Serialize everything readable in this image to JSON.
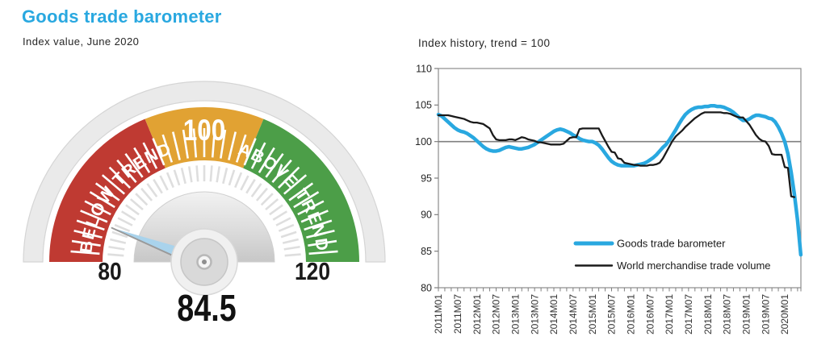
{
  "left_panel": {
    "title": "Goods trade barometer",
    "subtitle": "Index value, June 2020",
    "title_color": "#29a8e0",
    "gauge": {
      "min": 80,
      "max": 120,
      "value": 84.5,
      "value_label": "84.5",
      "min_label": "80",
      "max_label": "120",
      "center_label": "100",
      "segments": [
        {
          "name": "below-trend",
          "label": "BELOW TREND",
          "from": 80,
          "to": 95,
          "color": "#bf3a32"
        },
        {
          "name": "trend",
          "label": "100",
          "from": 95,
          "to": 105,
          "color": "#e1a233"
        },
        {
          "name": "above-trend",
          "label": "ABOVE TREND",
          "from": 105,
          "to": 120,
          "color": "#4c9e48"
        }
      ],
      "ring_color": "#eaeaea",
      "needle_color": "#a9d3ec"
    }
  },
  "chart_data": {
    "type": "line",
    "title": "Index history, trend = 100",
    "x_start": "2011M01",
    "x_unit": "month",
    "x_tick_labels": [
      "2011M01",
      "2011M07",
      "2012M01",
      "2012M07",
      "2013M01",
      "2013M07",
      "2014M01",
      "2014M07",
      "2015M01",
      "2015M07",
      "2016M01",
      "2016M07",
      "2017M01",
      "2017M07",
      "2018M01",
      "2018M07",
      "2019M01",
      "2019M07",
      "2020M01"
    ],
    "ylim": [
      80,
      110
    ],
    "yticks": [
      80,
      85,
      90,
      95,
      100,
      105,
      110
    ],
    "reference_line": 100,
    "grid": "off",
    "legend_position": "inside-bottom-right",
    "series": [
      {
        "name": "Goods trade barometer",
        "color": "#29a8e0",
        "width": 4.5,
        "values": [
          103.7,
          103.5,
          103.1,
          102.7,
          102.3,
          101.9,
          101.6,
          101.4,
          101.3,
          101.1,
          100.8,
          100.5,
          100.1,
          99.7,
          99.3,
          99.0,
          98.8,
          98.7,
          98.7,
          98.8,
          99.0,
          99.2,
          99.3,
          99.2,
          99.1,
          99.0,
          99.0,
          99.1,
          99.2,
          99.4,
          99.6,
          99.9,
          100.2,
          100.5,
          100.8,
          101.1,
          101.4,
          101.6,
          101.7,
          101.6,
          101.4,
          101.2,
          100.9,
          100.7,
          100.4,
          100.2,
          100.1,
          100.0,
          100.0,
          99.8,
          99.5,
          99.0,
          98.4,
          97.8,
          97.3,
          97.0,
          96.8,
          96.7,
          96.7,
          96.7,
          96.7,
          96.7,
          96.8,
          96.9,
          97.0,
          97.2,
          97.5,
          97.8,
          98.2,
          98.7,
          99.2,
          99.6,
          100.2,
          100.9,
          101.6,
          102.4,
          103.1,
          103.7,
          104.1,
          104.4,
          104.6,
          104.7,
          104.7,
          104.8,
          104.8,
          104.9,
          104.9,
          104.8,
          104.8,
          104.7,
          104.5,
          104.3,
          104.0,
          103.6,
          103.2,
          102.9,
          102.9,
          103.1,
          103.4,
          103.6,
          103.6,
          103.5,
          103.4,
          103.2,
          103.1,
          102.7,
          102.0,
          101.1,
          100.0,
          98.3,
          95.8,
          92.8,
          89.2,
          84.5
        ]
      },
      {
        "name": "World merchandise trade volume",
        "color": "#1a1a1a",
        "width": 2.3,
        "values": [
          103.6,
          103.6,
          103.6,
          103.6,
          103.5,
          103.4,
          103.3,
          103.2,
          103.1,
          102.9,
          102.7,
          102.6,
          102.6,
          102.5,
          102.4,
          102.1,
          101.8,
          100.9,
          100.3,
          100.2,
          100.2,
          100.2,
          100.3,
          100.3,
          100.2,
          100.4,
          100.6,
          100.5,
          100.3,
          100.2,
          100.1,
          99.9,
          99.9,
          99.8,
          99.7,
          99.6,
          99.6,
          99.6,
          99.6,
          99.7,
          100.1,
          100.5,
          100.6,
          100.6,
          101.7,
          101.8,
          101.8,
          101.8,
          101.8,
          101.8,
          101.8,
          100.9,
          100.1,
          99.3,
          98.6,
          98.5,
          97.7,
          97.6,
          97.1,
          97.0,
          96.9,
          96.8,
          96.8,
          96.7,
          96.7,
          96.7,
          96.8,
          96.8,
          96.9,
          97.1,
          97.7,
          98.5,
          99.3,
          100.1,
          100.7,
          101.1,
          101.5,
          102.0,
          102.4,
          102.8,
          103.2,
          103.5,
          103.8,
          104.0,
          104.0,
          104.0,
          104.0,
          104.0,
          104.0,
          103.9,
          103.9,
          103.8,
          103.6,
          103.4,
          103.3,
          103.3,
          102.8,
          102.3,
          101.6,
          100.9,
          100.4,
          100.1,
          100.0,
          99.4,
          98.3,
          98.2,
          98.2,
          98.2,
          96.5,
          96.4,
          92.5,
          92.4
        ]
      }
    ]
  }
}
